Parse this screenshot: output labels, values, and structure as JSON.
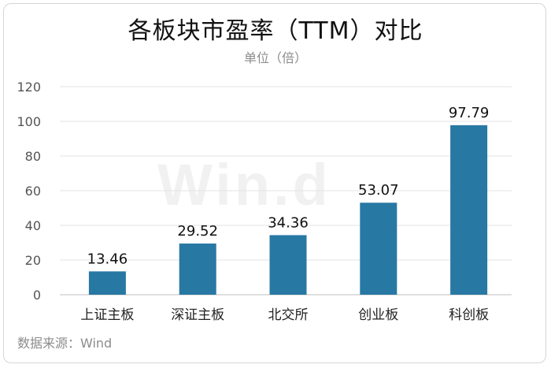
{
  "title": "各板块市盈率（TTM）对比",
  "subtitle": "单位（倍）",
  "source": "数据来源：Wind",
  "watermark": "Win.d",
  "colors": {
    "bar": "#2878a4",
    "grid": "#e3e3e3",
    "axis": "#bfbfbf"
  },
  "chart_data": {
    "type": "bar",
    "title": "各板块市盈率（TTM）对比",
    "ylabel": "单位（倍）",
    "categories": [
      "上证主板",
      "深证主板",
      "北交所",
      "创业板",
      "科创板"
    ],
    "values": [
      13.46,
      29.52,
      34.36,
      53.07,
      97.79
    ],
    "data_labels": [
      "13.46",
      "29.52",
      "34.36",
      "53.07",
      "97.79"
    ],
    "ylim": [
      0,
      120
    ],
    "yticks": [
      0,
      20,
      40,
      60,
      80,
      100,
      120
    ],
    "grid": true,
    "legend": "none"
  }
}
